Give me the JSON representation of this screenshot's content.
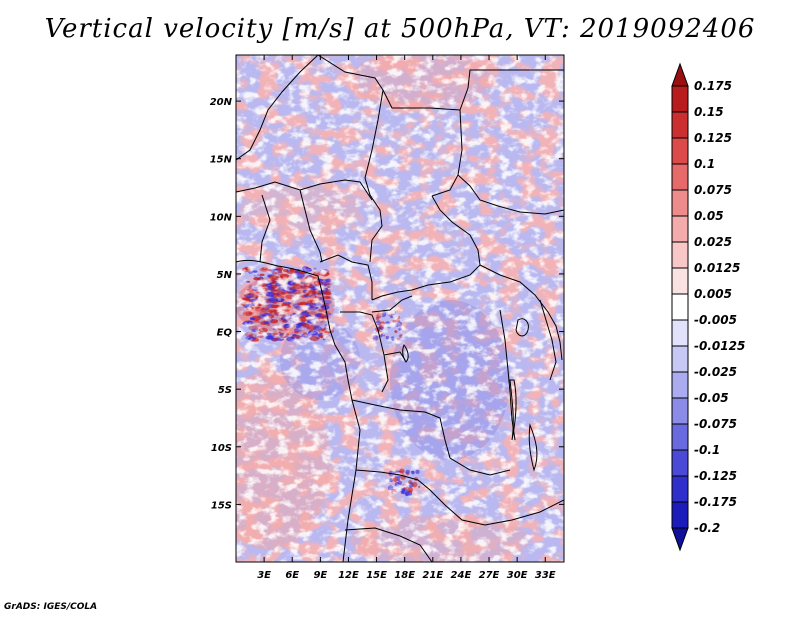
{
  "title": "Vertical velocity [m/s] at 500hPa, VT: 2019092406",
  "credit": "GrADS: IGES/COLA",
  "map": {
    "variable": "Vertical velocity",
    "units": "m/s",
    "level": "500hPa",
    "valid_time": "2019092406",
    "lon_range": [
      0,
      35
    ],
    "lat_range": [
      -20,
      24
    ],
    "lon_ticks": [
      "3E",
      "6E",
      "9E",
      "12E",
      "15E",
      "18E",
      "21E",
      "24E",
      "27E",
      "30E",
      "33E"
    ],
    "lat_ticks": [
      "20N",
      "15N",
      "10N",
      "5N",
      "EQ",
      "5S",
      "10S",
      "15S"
    ],
    "palette_neg": "#3a2bd6",
    "palette_pos": "#c81e1e"
  },
  "colorbar": {
    "labels": [
      "0.175",
      "0.15",
      "0.125",
      "0.1",
      "0.075",
      "0.05",
      "0.025",
      "0.0125",
      "0.005",
      "-0.005",
      "-0.0125",
      "-0.025",
      "-0.05",
      "-0.075",
      "-0.1",
      "-0.125",
      "-0.175",
      "-0.2"
    ],
    "colors": [
      "#9a1010",
      "#b81c1c",
      "#cc2f2f",
      "#dc4a4a",
      "#e66a6a",
      "#ee8c8c",
      "#f4abab",
      "#f8c8c8",
      "#fbe2e2",
      "#ffffff",
      "#e2e2fb",
      "#c8c8f5",
      "#ababef",
      "#8c8ce8",
      "#6a6ae0",
      "#4a4ad6",
      "#2f2fcb",
      "#1c1cbb",
      "#10109f"
    ]
  }
}
